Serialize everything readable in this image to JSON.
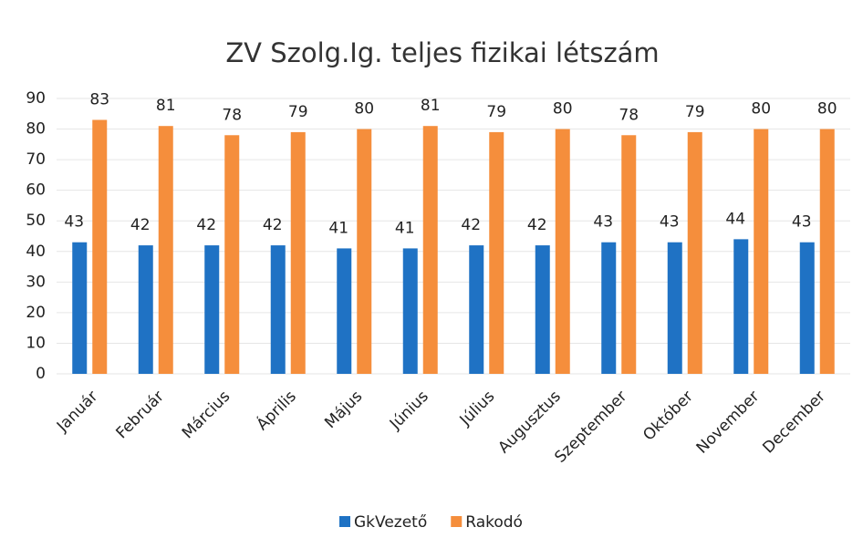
{
  "chart_data": {
    "type": "bar",
    "title": "ZV Szolg.Ig. teljes fizikai létszám",
    "categories": [
      "Január",
      "Február",
      "Március",
      "Április",
      "Május",
      "Június",
      "Július",
      "Augusztus",
      "Szeptember",
      "Október",
      "November",
      "December"
    ],
    "series": [
      {
        "name": "GkVezető",
        "color": "#1f72c4",
        "values": [
          43,
          42,
          42,
          42,
          41,
          41,
          42,
          42,
          43,
          43,
          44,
          43
        ]
      },
      {
        "name": "Rakodó",
        "color": "#f58e3c",
        "values": [
          83,
          81,
          78,
          79,
          80,
          81,
          79,
          80,
          78,
          79,
          80,
          80
        ]
      }
    ],
    "ylim": [
      0,
      90
    ],
    "yticks": [
      0,
      10,
      20,
      30,
      40,
      50,
      60,
      70,
      80,
      90
    ],
    "grid": true,
    "legend": "bottom"
  }
}
